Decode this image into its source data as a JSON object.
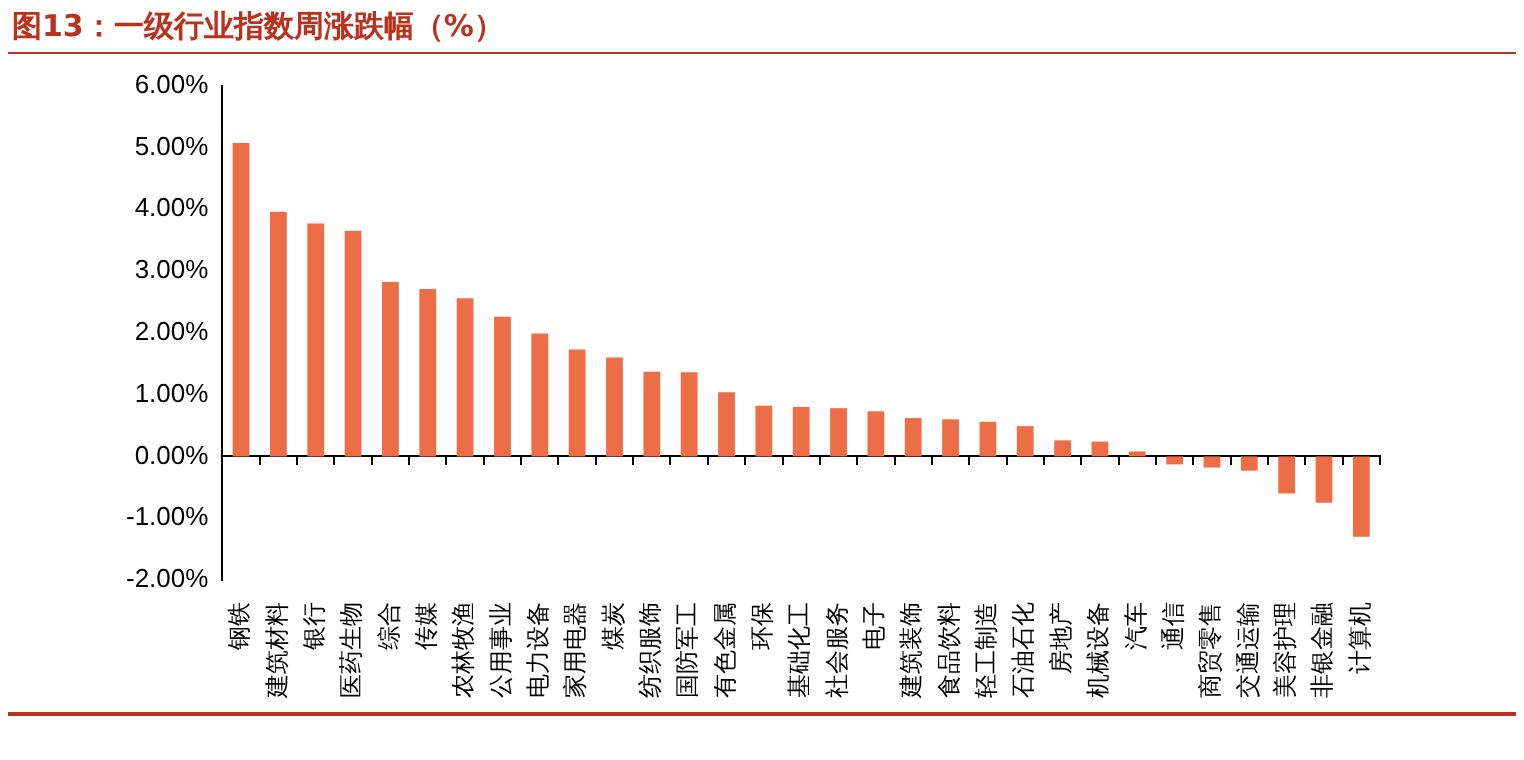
{
  "chart_data": {
    "type": "bar",
    "title": "图13：一级行业指数周涨跌幅（%）",
    "categories": [
      "钢铁",
      "建筑材料",
      "银行",
      "医药生物",
      "综合",
      "传媒",
      "农林牧渔",
      "公用事业",
      "电力设备",
      "家用电器",
      "煤炭",
      "纺织服饰",
      "国防军工",
      "有色金属",
      "环保",
      "基础化工",
      "社会服务",
      "电子",
      "建筑装饰",
      "食品饮料",
      "轻工制造",
      "石油石化",
      "房地产",
      "机械设备",
      "汽车",
      "通信",
      "商贸零售",
      "交通运输",
      "美容护理",
      "非银金融",
      "计算机"
    ],
    "values": [
      5.07,
      3.96,
      3.77,
      3.65,
      2.82,
      2.71,
      2.56,
      2.26,
      1.99,
      1.73,
      1.6,
      1.37,
      1.36,
      1.04,
      0.82,
      0.8,
      0.78,
      0.73,
      0.62,
      0.6,
      0.56,
      0.49,
      0.26,
      0.24,
      0.08,
      -0.13,
      -0.18,
      -0.23,
      -0.6,
      -0.75,
      -1.3
    ],
    "color": "#ed6d46",
    "ylim": [
      -2,
      6
    ],
    "yticks": [
      {
        "value": -2,
        "label": "-2.00%"
      },
      {
        "value": -1,
        "label": "-1.00%"
      },
      {
        "value": 0,
        "label": "0.00%"
      },
      {
        "value": 1,
        "label": "1.00%"
      },
      {
        "value": 2,
        "label": "2.00%"
      },
      {
        "value": 3,
        "label": "3.00%"
      },
      {
        "value": 4,
        "label": "4.00%"
      },
      {
        "value": 5,
        "label": "5.00%"
      },
      {
        "value": 6,
        "label": "6.00%"
      }
    ],
    "legend": false
  }
}
